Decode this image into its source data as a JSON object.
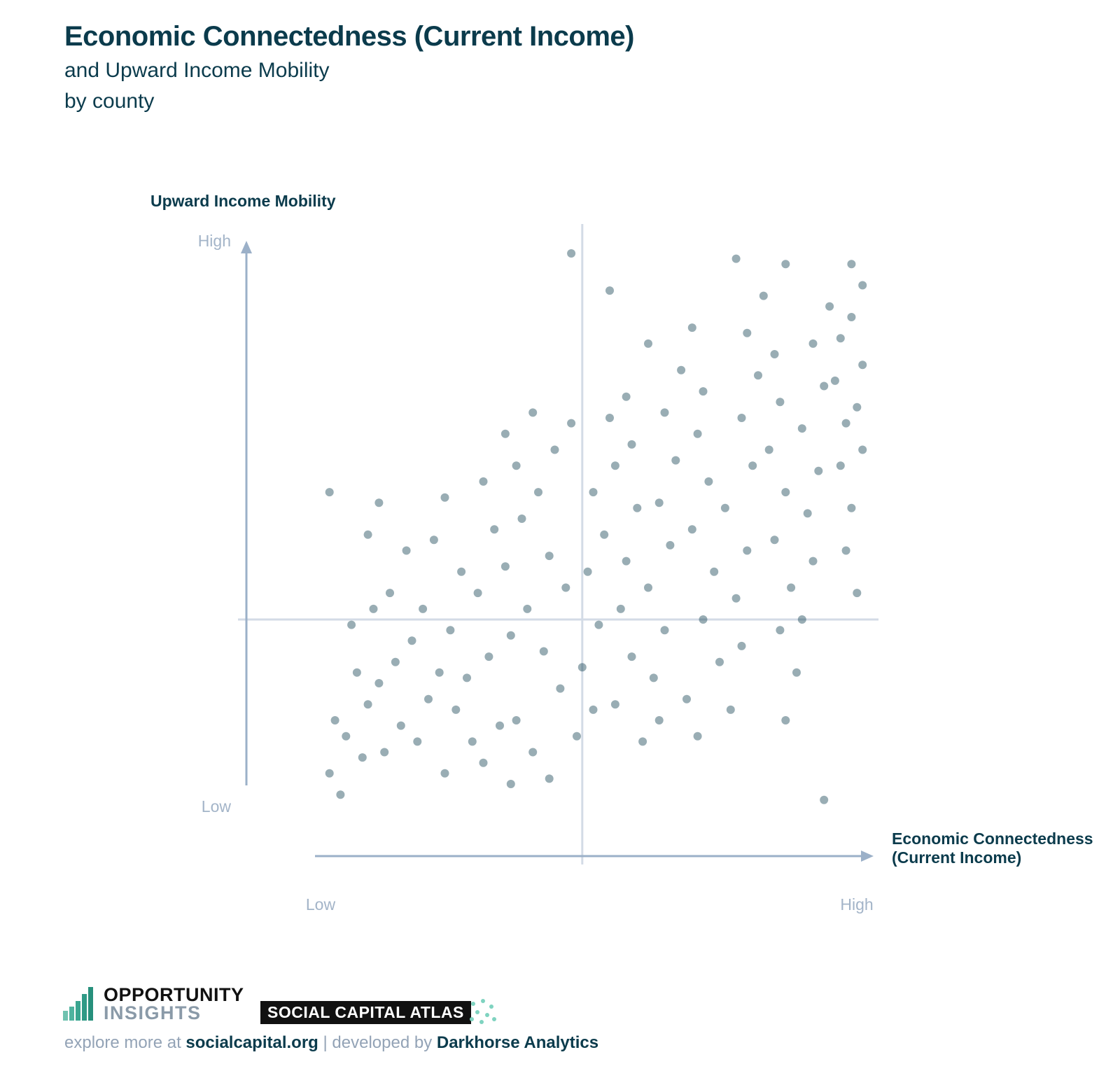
{
  "header": {
    "title": "Economic Connectedness (Current Income)",
    "subtitle_line1": "and Upward Income Mobility",
    "subtitle_line2": "by county"
  },
  "chart_data": {
    "type": "scatter",
    "title": "Economic Connectedness (Current Income)",
    "subtitle": "and Upward Income Mobility by county",
    "ylabel": "Upward Income Mobility",
    "xlabel_line1": "Economic Connectedness",
    "xlabel_line2": "(Current Income)",
    "x_ticks": {
      "low": "Low",
      "high": "High"
    },
    "y_ticks": {
      "low": "Low",
      "high": "High"
    },
    "xlim": [
      0,
      1
    ],
    "ylim": [
      0,
      1
    ],
    "reference_lines": {
      "x": 0.48,
      "y": 0.31
    },
    "point_color": "#0b3b4c",
    "point_opacity": 0.42,
    "outliers": [
      {
        "x": 0.46,
        "y": 1.0
      },
      {
        "x": 0.53,
        "y": 0.93
      },
      {
        "x": 0.02,
        "y": 0.55
      },
      {
        "x": 0.92,
        "y": -0.03
      },
      {
        "x": 0.97,
        "y": 0.98
      },
      {
        "x": 0.85,
        "y": 0.98
      },
      {
        "x": 0.76,
        "y": 0.99
      }
    ],
    "points": [
      {
        "x": 0.04,
        "y": -0.02
      },
      {
        "x": 0.02,
        "y": 0.02
      },
      {
        "x": 0.08,
        "y": 0.05
      },
      {
        "x": 0.05,
        "y": 0.09
      },
      {
        "x": 0.12,
        "y": 0.06
      },
      {
        "x": 0.03,
        "y": 0.12
      },
      {
        "x": 0.09,
        "y": 0.15
      },
      {
        "x": 0.15,
        "y": 0.11
      },
      {
        "x": 0.11,
        "y": 0.19
      },
      {
        "x": 0.18,
        "y": 0.08
      },
      {
        "x": 0.07,
        "y": 0.21
      },
      {
        "x": 0.14,
        "y": 0.23
      },
      {
        "x": 0.2,
        "y": 0.16
      },
      {
        "x": 0.17,
        "y": 0.27
      },
      {
        "x": 0.22,
        "y": 0.21
      },
      {
        "x": 0.06,
        "y": 0.3
      },
      {
        "x": 0.1,
        "y": 0.33
      },
      {
        "x": 0.13,
        "y": 0.36
      },
      {
        "x": 0.19,
        "y": 0.33
      },
      {
        "x": 0.24,
        "y": 0.29
      },
      {
        "x": 0.25,
        "y": 0.14
      },
      {
        "x": 0.28,
        "y": 0.08
      },
      {
        "x": 0.23,
        "y": 0.02
      },
      {
        "x": 0.3,
        "y": 0.04
      },
      {
        "x": 0.33,
        "y": 0.11
      },
      {
        "x": 0.27,
        "y": 0.2
      },
      {
        "x": 0.31,
        "y": 0.24
      },
      {
        "x": 0.29,
        "y": 0.36
      },
      {
        "x": 0.35,
        "y": 0.28
      },
      {
        "x": 0.26,
        "y": 0.4
      },
      {
        "x": 0.34,
        "y": 0.41
      },
      {
        "x": 0.38,
        "y": 0.33
      },
      {
        "x": 0.32,
        "y": 0.48
      },
      {
        "x": 0.37,
        "y": 0.5
      },
      {
        "x": 0.21,
        "y": 0.46
      },
      {
        "x": 0.16,
        "y": 0.44
      },
      {
        "x": 0.09,
        "y": 0.47
      },
      {
        "x": 0.11,
        "y": 0.53
      },
      {
        "x": 0.23,
        "y": 0.54
      },
      {
        "x": 0.3,
        "y": 0.57
      },
      {
        "x": 0.36,
        "y": 0.6
      },
      {
        "x": 0.4,
        "y": 0.55
      },
      {
        "x": 0.34,
        "y": 0.66
      },
      {
        "x": 0.39,
        "y": 0.7
      },
      {
        "x": 0.43,
        "y": 0.63
      },
      {
        "x": 0.46,
        "y": 0.68
      },
      {
        "x": 0.42,
        "y": 0.43
      },
      {
        "x": 0.45,
        "y": 0.37
      },
      {
        "x": 0.41,
        "y": 0.25
      },
      {
        "x": 0.44,
        "y": 0.18
      },
      {
        "x": 0.36,
        "y": 0.12
      },
      {
        "x": 0.39,
        "y": 0.06
      },
      {
        "x": 0.42,
        "y": 0.01
      },
      {
        "x": 0.35,
        "y": 0.0
      },
      {
        "x": 0.47,
        "y": 0.09
      },
      {
        "x": 0.5,
        "y": 0.14
      },
      {
        "x": 0.48,
        "y": 0.22
      },
      {
        "x": 0.51,
        "y": 0.3
      },
      {
        "x": 0.49,
        "y": 0.4
      },
      {
        "x": 0.52,
        "y": 0.47
      },
      {
        "x": 0.5,
        "y": 0.55
      },
      {
        "x": 0.54,
        "y": 0.6
      },
      {
        "x": 0.53,
        "y": 0.69
      },
      {
        "x": 0.56,
        "y": 0.73
      },
      {
        "x": 0.57,
        "y": 0.64
      },
      {
        "x": 0.58,
        "y": 0.52
      },
      {
        "x": 0.56,
        "y": 0.42
      },
      {
        "x": 0.55,
        "y": 0.33
      },
      {
        "x": 0.57,
        "y": 0.24
      },
      {
        "x": 0.54,
        "y": 0.15
      },
      {
        "x": 0.59,
        "y": 0.08
      },
      {
        "x": 0.62,
        "y": 0.12
      },
      {
        "x": 0.61,
        "y": 0.2
      },
      {
        "x": 0.63,
        "y": 0.29
      },
      {
        "x": 0.6,
        "y": 0.37
      },
      {
        "x": 0.64,
        "y": 0.45
      },
      {
        "x": 0.62,
        "y": 0.53
      },
      {
        "x": 0.65,
        "y": 0.61
      },
      {
        "x": 0.63,
        "y": 0.7
      },
      {
        "x": 0.66,
        "y": 0.78
      },
      {
        "x": 0.6,
        "y": 0.83
      },
      {
        "x": 0.68,
        "y": 0.86
      },
      {
        "x": 0.7,
        "y": 0.74
      },
      {
        "x": 0.69,
        "y": 0.66
      },
      {
        "x": 0.71,
        "y": 0.57
      },
      {
        "x": 0.68,
        "y": 0.48
      },
      {
        "x": 0.72,
        "y": 0.4
      },
      {
        "x": 0.7,
        "y": 0.31
      },
      {
        "x": 0.73,
        "y": 0.23
      },
      {
        "x": 0.67,
        "y": 0.16
      },
      {
        "x": 0.69,
        "y": 0.09
      },
      {
        "x": 0.75,
        "y": 0.14
      },
      {
        "x": 0.77,
        "y": 0.26
      },
      {
        "x": 0.76,
        "y": 0.35
      },
      {
        "x": 0.78,
        "y": 0.44
      },
      {
        "x": 0.74,
        "y": 0.52
      },
      {
        "x": 0.79,
        "y": 0.6
      },
      {
        "x": 0.77,
        "y": 0.69
      },
      {
        "x": 0.8,
        "y": 0.77
      },
      {
        "x": 0.78,
        "y": 0.85
      },
      {
        "x": 0.81,
        "y": 0.92
      },
      {
        "x": 0.83,
        "y": 0.81
      },
      {
        "x": 0.84,
        "y": 0.72
      },
      {
        "x": 0.82,
        "y": 0.63
      },
      {
        "x": 0.85,
        "y": 0.55
      },
      {
        "x": 0.83,
        "y": 0.46
      },
      {
        "x": 0.86,
        "y": 0.37
      },
      {
        "x": 0.84,
        "y": 0.29
      },
      {
        "x": 0.87,
        "y": 0.21
      },
      {
        "x": 0.85,
        "y": 0.12
      },
      {
        "x": 0.88,
        "y": 0.31
      },
      {
        "x": 0.9,
        "y": 0.42
      },
      {
        "x": 0.89,
        "y": 0.51
      },
      {
        "x": 0.91,
        "y": 0.59
      },
      {
        "x": 0.88,
        "y": 0.67
      },
      {
        "x": 0.92,
        "y": 0.75
      },
      {
        "x": 0.9,
        "y": 0.83
      },
      {
        "x": 0.93,
        "y": 0.9
      },
      {
        "x": 0.95,
        "y": 0.84
      },
      {
        "x": 0.94,
        "y": 0.76
      },
      {
        "x": 0.96,
        "y": 0.68
      },
      {
        "x": 0.95,
        "y": 0.6
      },
      {
        "x": 0.97,
        "y": 0.52
      },
      {
        "x": 0.96,
        "y": 0.44
      },
      {
        "x": 0.98,
        "y": 0.36
      },
      {
        "x": 0.99,
        "y": 0.63
      },
      {
        "x": 0.98,
        "y": 0.71
      },
      {
        "x": 0.99,
        "y": 0.79
      },
      {
        "x": 0.97,
        "y": 0.88
      },
      {
        "x": 0.99,
        "y": 0.94
      }
    ]
  },
  "footer": {
    "oi_line1": "OPPORTUNITY",
    "oi_line2": "INSIGHTS",
    "sca_label": "SOCIAL CAPITAL ATLAS",
    "explore_prefix": "explore more at ",
    "explore_link": "socialcapital.org",
    "separator": " | ",
    "dev_prefix": "developed by ",
    "dev_link": "Darkhorse Analytics"
  }
}
